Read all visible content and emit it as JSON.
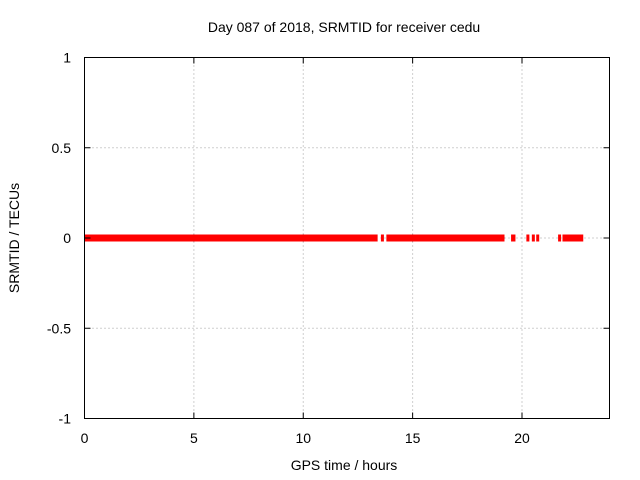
{
  "chart_data": {
    "type": "scatter",
    "title": "Day 087 of 2018, SRMTID for receiver cedu",
    "xlabel": "GPS time / hours",
    "ylabel": "SRMTID / TECUs",
    "xlim": [
      0,
      24
    ],
    "ylim": [
      -1,
      1
    ],
    "x_ticks": [
      0,
      5,
      10,
      15,
      20
    ],
    "x_tick_labels": [
      "0",
      "5",
      "10",
      "15",
      "20"
    ],
    "y_ticks": [
      -1,
      -0.5,
      0,
      0.5,
      1
    ],
    "y_tick_labels": [
      "-1",
      "-0.5",
      "0",
      "0.5",
      "1"
    ],
    "grid": true,
    "marker_color": "#ff0000",
    "series": [
      {
        "name": "SRMTID",
        "value": 0,
        "segments": [
          [
            0.0,
            13.4
          ],
          [
            13.55,
            13.6
          ],
          [
            13.8,
            19.2
          ],
          [
            19.5,
            19.7
          ],
          [
            20.2,
            20.3
          ],
          [
            20.45,
            20.55
          ],
          [
            20.65,
            20.7
          ],
          [
            21.65,
            21.75
          ],
          [
            21.85,
            22.8
          ]
        ]
      }
    ]
  }
}
